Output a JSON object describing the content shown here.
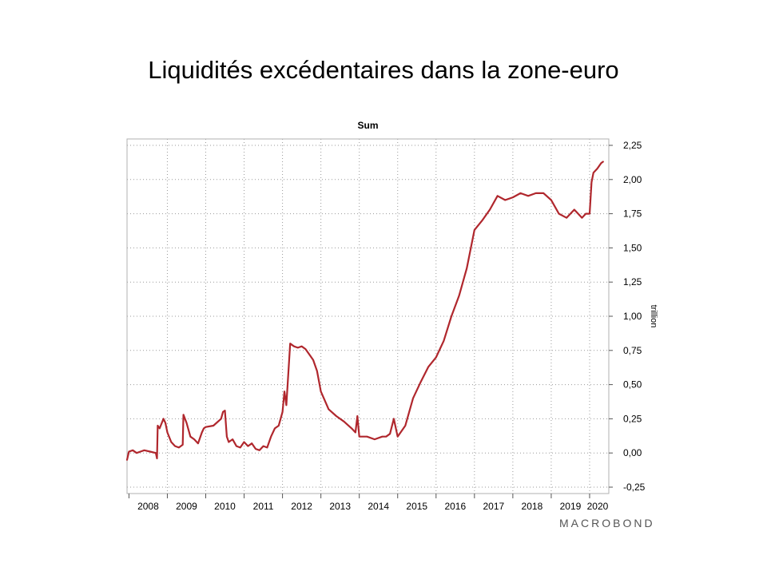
{
  "slide": {
    "title": "Liquidités excédentaires dans la zone-euro"
  },
  "watermark": "MACROBOND",
  "chart_data": {
    "type": "line",
    "title": "Sum",
    "xlabel": "",
    "ylabel": "trillion",
    "y_axis_position": "right",
    "ylim": [
      -0.25,
      2.25
    ],
    "y_ticks": [
      "2,25",
      "2,00",
      "1,75",
      "1,50",
      "1,25",
      "1,00",
      "0,75",
      "0,50",
      "0,25",
      "0,00",
      "-0,25"
    ],
    "y_tick_values": [
      2.25,
      2.0,
      1.75,
      1.5,
      1.25,
      1.0,
      0.75,
      0.5,
      0.25,
      0.0,
      -0.25
    ],
    "xlim": [
      2007.95,
      2020.5
    ],
    "x_ticks": [
      "2008",
      "2009",
      "2010",
      "2011",
      "2012",
      "2013",
      "2014",
      "2015",
      "2016",
      "2017",
      "2018",
      "2019",
      "2020"
    ],
    "grid": true,
    "series": [
      {
        "name": "",
        "color": "#b0272d",
        "x": [
          2007.95,
          2008.0,
          2008.1,
          2008.2,
          2008.3,
          2008.4,
          2008.55,
          2008.7,
          2008.73,
          2008.75,
          2008.8,
          2008.9,
          2008.95,
          2009.0,
          2009.1,
          2009.2,
          2009.3,
          2009.4,
          2009.42,
          2009.5,
          2009.6,
          2009.7,
          2009.8,
          2009.9,
          2009.95,
          2010.0,
          2010.2,
          2010.4,
          2010.45,
          2010.5,
          2010.55,
          2010.6,
          2010.7,
          2010.8,
          2010.9,
          2011.0,
          2011.1,
          2011.2,
          2011.3,
          2011.4,
          2011.5,
          2011.6,
          2011.7,
          2011.8,
          2011.9,
          2011.95,
          2012.0,
          2012.05,
          2012.1,
          2012.2,
          2012.3,
          2012.4,
          2012.5,
          2012.6,
          2012.7,
          2012.8,
          2012.9,
          2013.0,
          2013.2,
          2013.4,
          2013.6,
          2013.8,
          2013.9,
          2013.95,
          2014.0,
          2014.2,
          2014.4,
          2014.6,
          2014.7,
          2014.8,
          2014.9,
          2015.0,
          2015.2,
          2015.4,
          2015.6,
          2015.8,
          2016.0,
          2016.2,
          2016.4,
          2016.6,
          2016.7,
          2016.75,
          2016.8,
          2017.0,
          2017.2,
          2017.4,
          2017.6,
          2017.8,
          2018.0,
          2018.2,
          2018.4,
          2018.6,
          2018.8,
          2019.0,
          2019.2,
          2019.4,
          2019.6,
          2019.8,
          2019.9,
          2020.0,
          2020.05,
          2020.1,
          2020.2,
          2020.3,
          2020.35
        ],
        "values": [
          -0.05,
          0.01,
          0.02,
          0.0,
          0.01,
          0.02,
          0.01,
          0.0,
          -0.04,
          0.2,
          0.18,
          0.25,
          0.22,
          0.15,
          0.08,
          0.05,
          0.04,
          0.06,
          0.28,
          0.22,
          0.12,
          0.1,
          0.07,
          0.15,
          0.18,
          0.19,
          0.2,
          0.25,
          0.3,
          0.31,
          0.12,
          0.08,
          0.1,
          0.05,
          0.04,
          0.08,
          0.05,
          0.07,
          0.03,
          0.02,
          0.05,
          0.04,
          0.12,
          0.18,
          0.2,
          0.25,
          0.3,
          0.45,
          0.35,
          0.8,
          0.78,
          0.77,
          0.78,
          0.76,
          0.72,
          0.68,
          0.6,
          0.45,
          0.32,
          0.27,
          0.23,
          0.18,
          0.15,
          0.27,
          0.12,
          0.12,
          0.1,
          0.12,
          0.12,
          0.14,
          0.25,
          0.12,
          0.2,
          0.4,
          0.52,
          0.63,
          0.7,
          0.82,
          1.0,
          1.15,
          1.25,
          1.3,
          1.35,
          1.63,
          1.7,
          1.78,
          1.88,
          1.85,
          1.87,
          1.9,
          1.88,
          1.9,
          1.9,
          1.85,
          1.75,
          1.72,
          1.78,
          1.72,
          1.75,
          1.75,
          1.98,
          2.05,
          2.08,
          2.12,
          2.13
        ]
      }
    ]
  }
}
